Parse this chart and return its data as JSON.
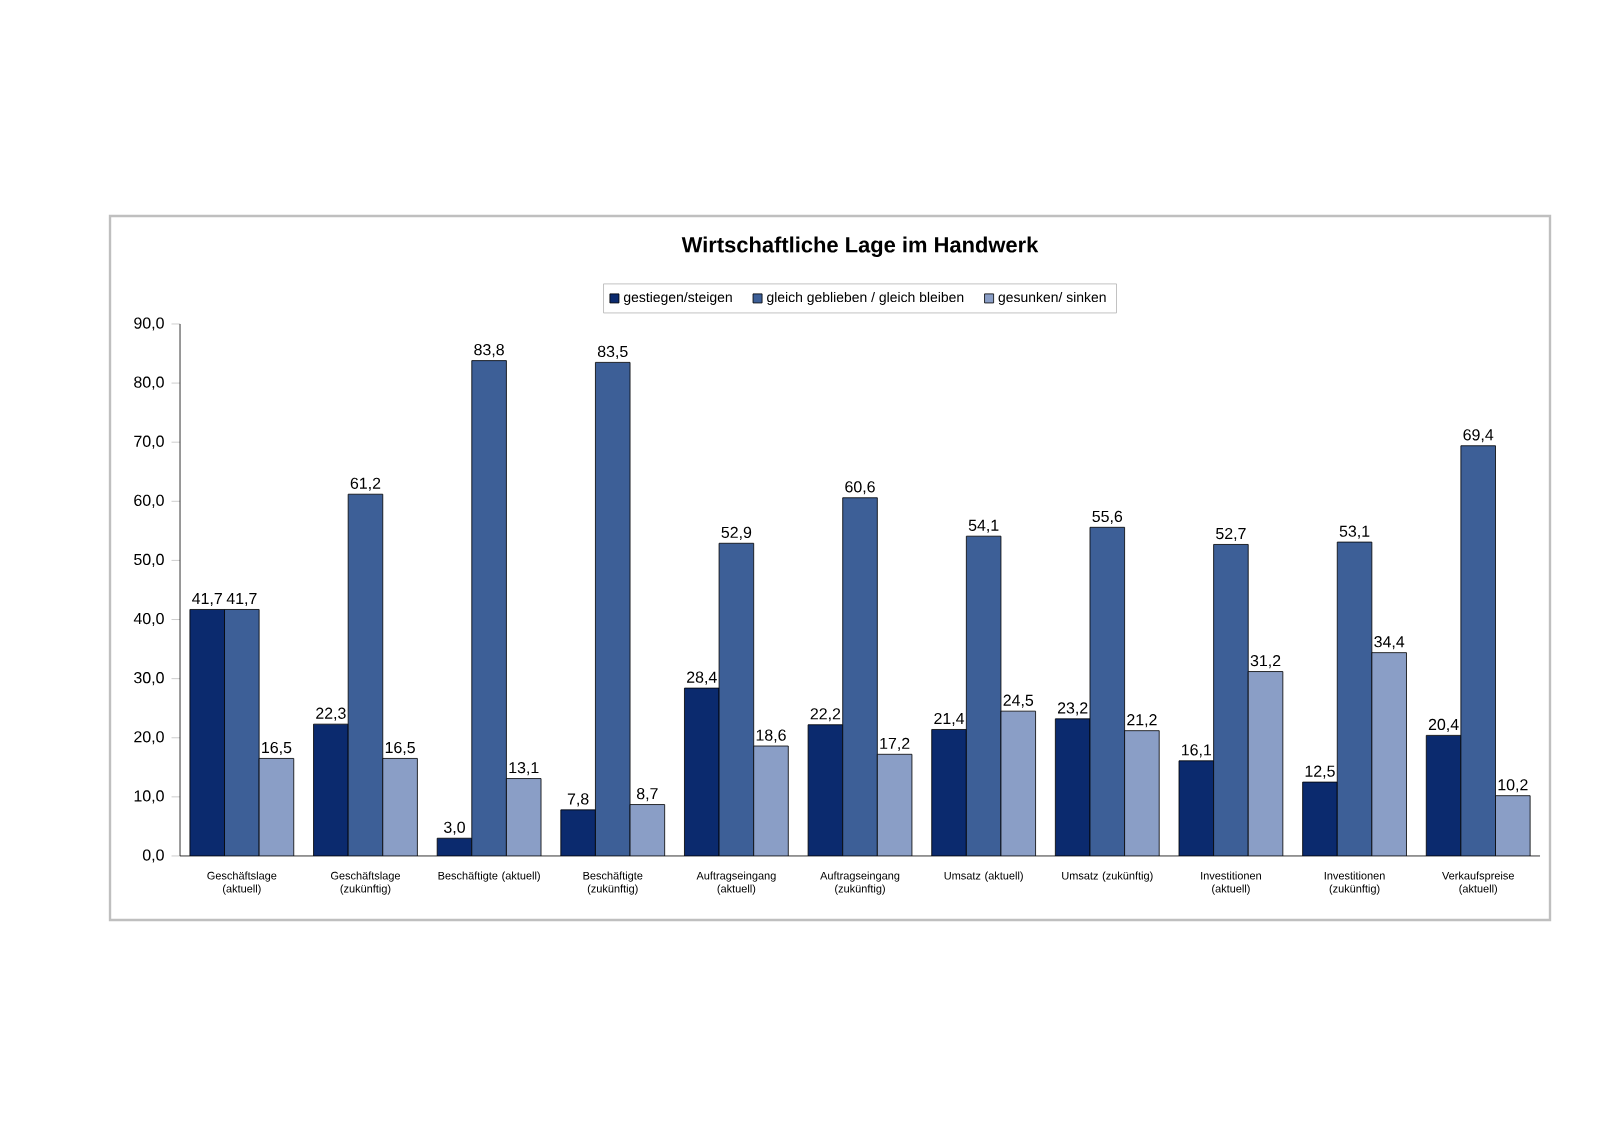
{
  "chart_data": {
    "type": "bar",
    "title": "Wirtschaftliche Lage im Handwerk",
    "categories": [
      "Geschäftslage (aktuell)",
      "Geschäftslage (zukünftig)",
      "Beschäftigte (aktuell)",
      "Beschäftigte (zukünftig)",
      "Auftragseingang (aktuell)",
      "Auftragseingang (zukünftig)",
      "Umsatz (aktuell)",
      "Umsatz (zukünftig)",
      "Investitionen (aktuell)",
      "Investitionen (zukünftig)",
      "Verkaufspreise (aktuell)"
    ],
    "series": [
      {
        "name": "gestiegen/steigen",
        "color": "#0b2a6e",
        "values": [
          41.7,
          22.3,
          3.0,
          7.8,
          28.4,
          22.2,
          21.4,
          23.2,
          16.1,
          12.5,
          20.4
        ],
        "value_labels": [
          "41,7",
          "22,3",
          "3,0",
          "7,8",
          "28,4",
          "22,2",
          "21,4",
          "23,2",
          "16,1",
          "12,5",
          "20,4"
        ]
      },
      {
        "name": "gleich geblieben / gleich bleiben",
        "color": "#3d5f97",
        "values": [
          41.7,
          61.2,
          83.8,
          83.5,
          52.9,
          60.6,
          54.1,
          55.6,
          52.7,
          53.1,
          69.4
        ],
        "value_labels": [
          "41,7",
          "61,2",
          "83,8",
          "83,5",
          "52,9",
          "60,6",
          "54,1",
          "55,6",
          "52,7",
          "53,1",
          "69,4"
        ]
      },
      {
        "name": "gesunken/ sinken",
        "color": "#8a9ec6",
        "values": [
          16.5,
          16.5,
          13.1,
          8.7,
          18.6,
          17.2,
          24.5,
          21.2,
          31.2,
          34.4,
          10.2
        ],
        "value_labels": [
          "16,5",
          "16,5",
          "13,1",
          "8,7",
          "18,6",
          "17,2",
          "24,5",
          "21,2",
          "31,2",
          "34,4",
          "10,2"
        ]
      }
    ],
    "ylim": [
      0,
      90
    ],
    "yticks": [
      {
        "value": 0,
        "label": "0,0"
      },
      {
        "value": 10,
        "label": "10,0"
      },
      {
        "value": 20,
        "label": "20,0"
      },
      {
        "value": 30,
        "label": "30,0"
      },
      {
        "value": 40,
        "label": "40,0"
      },
      {
        "value": 50,
        "label": "50,0"
      },
      {
        "value": 60,
        "label": "60,0"
      },
      {
        "value": 70,
        "label": "70,0"
      },
      {
        "value": 80,
        "label": "80,0"
      },
      {
        "value": 90,
        "label": "90,0"
      }
    ],
    "legend": "top",
    "grid": false
  }
}
